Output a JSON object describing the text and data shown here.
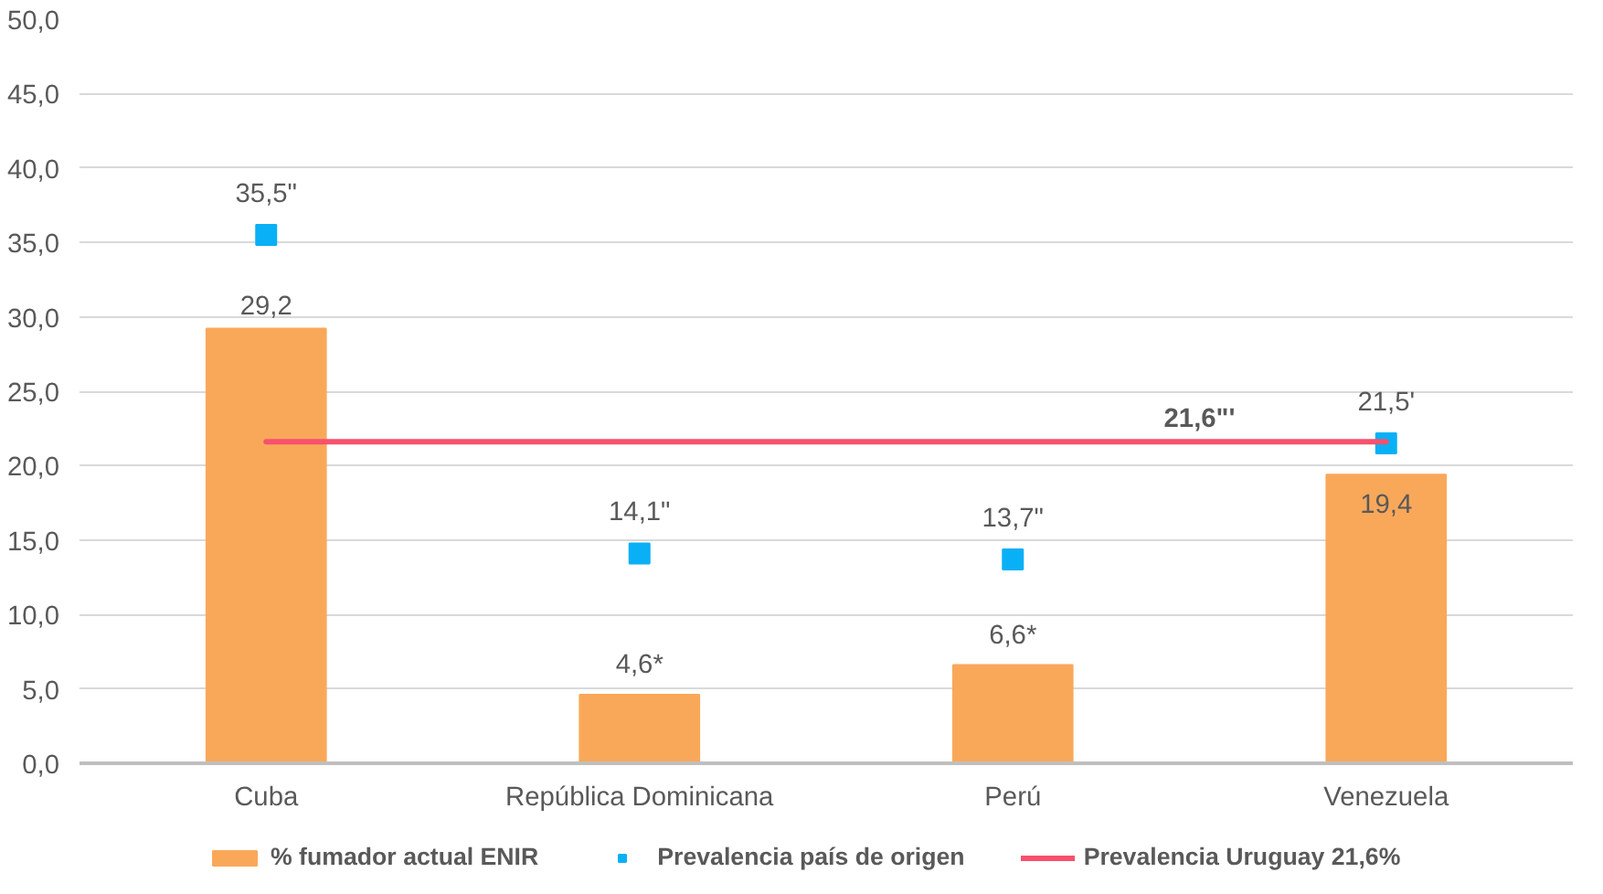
{
  "chart_data": {
    "type": "bar",
    "categories": [
      "Cuba",
      "República Dominicana",
      "Perú",
      "Venezuela"
    ],
    "series": [
      {
        "name": "% fumador actual ENIR",
        "type": "bar",
        "color": "#f9a85a",
        "values": [
          29.2,
          4.6,
          6.6,
          19.4
        ],
        "value_labels": [
          "29,2",
          "4,6*",
          "6,6*",
          "19,4"
        ]
      },
      {
        "name": "Prevalencia país de origen",
        "type": "scatter",
        "color": "#0ab0f5",
        "marker": "square",
        "values": [
          35.5,
          14.1,
          13.7,
          21.5
        ],
        "value_labels": [
          "35,5\"",
          "14,1\"",
          "13,7\"",
          "21,5'"
        ]
      },
      {
        "name": "Prevalencia Uruguay 21,6%",
        "type": "line",
        "color": "#f7506e",
        "values": [
          21.6,
          21.6,
          21.6,
          21.6
        ]
      }
    ],
    "annotations": [
      {
        "text": "21,6\"'",
        "y": 21.6
      }
    ],
    "ylim": [
      0,
      50
    ],
    "yticks": [
      {
        "value": 0,
        "label": "0,0"
      },
      {
        "value": 5,
        "label": "5,0"
      },
      {
        "value": 10,
        "label": "10,0"
      },
      {
        "value": 15,
        "label": "15,0"
      },
      {
        "value": 20,
        "label": "20,0"
      },
      {
        "value": 25,
        "label": "25,0"
      },
      {
        "value": 30,
        "label": "30,0"
      },
      {
        "value": 35,
        "label": "35,0"
      },
      {
        "value": 40,
        "label": "40,0"
      },
      {
        "value": 45,
        "label": "45,0"
      },
      {
        "value": 50,
        "label": "50,0"
      }
    ],
    "grid": "y",
    "legend": "bottom"
  }
}
